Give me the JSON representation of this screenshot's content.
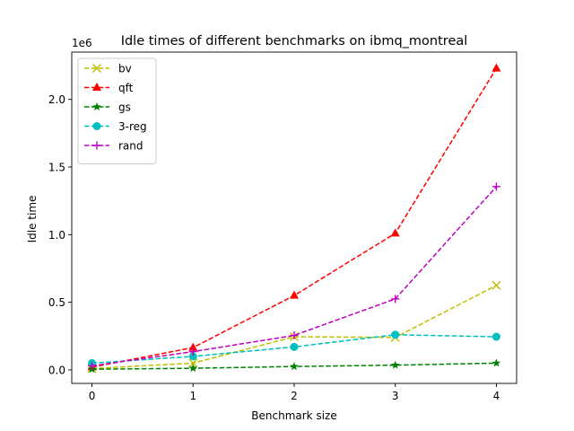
{
  "chart_data": {
    "type": "line",
    "title": "Idle times of different benchmarks on ibmq_montreal",
    "xlabel": "Benchmark size",
    "ylabel": "Idle time",
    "y_offset_label": "1e6",
    "x": [
      0,
      1,
      2,
      3,
      4
    ],
    "xlim": [
      -0.2,
      4.2
    ],
    "ylim": [
      -0.1,
      2.35
    ],
    "y_scale_factor": 1000000,
    "x_ticks": [
      "0",
      "1",
      "2",
      "3",
      "4"
    ],
    "y_ticks": [
      {
        "value": 0.0,
        "label": "0.0"
      },
      {
        "value": 0.5,
        "label": "0.5"
      },
      {
        "value": 1.0,
        "label": "1.0"
      },
      {
        "value": 1.5,
        "label": "1.5"
      },
      {
        "value": 2.0,
        "label": "2.0"
      }
    ],
    "grid": false,
    "legend_position": "top-left",
    "series": [
      {
        "name": "bv",
        "color": "#bfbf00",
        "marker": "x",
        "values": [
          0.01,
          0.05,
          0.245,
          0.24,
          0.625
        ]
      },
      {
        "name": "qft",
        "color": "#ff0000",
        "marker": "triangle",
        "values": [
          0.02,
          0.165,
          0.55,
          1.01,
          2.23
        ]
      },
      {
        "name": "gs",
        "color": "#008000",
        "marker": "star",
        "values": [
          0.005,
          0.012,
          0.025,
          0.035,
          0.05
        ]
      },
      {
        "name": "3-reg",
        "color": "#00bfbf",
        "marker": "circle",
        "values": [
          0.05,
          0.1,
          0.17,
          0.26,
          0.245
        ]
      },
      {
        "name": "rand",
        "color": "#bf00bf",
        "marker": "plus",
        "values": [
          0.03,
          0.135,
          0.255,
          0.525,
          1.355
        ]
      }
    ]
  }
}
